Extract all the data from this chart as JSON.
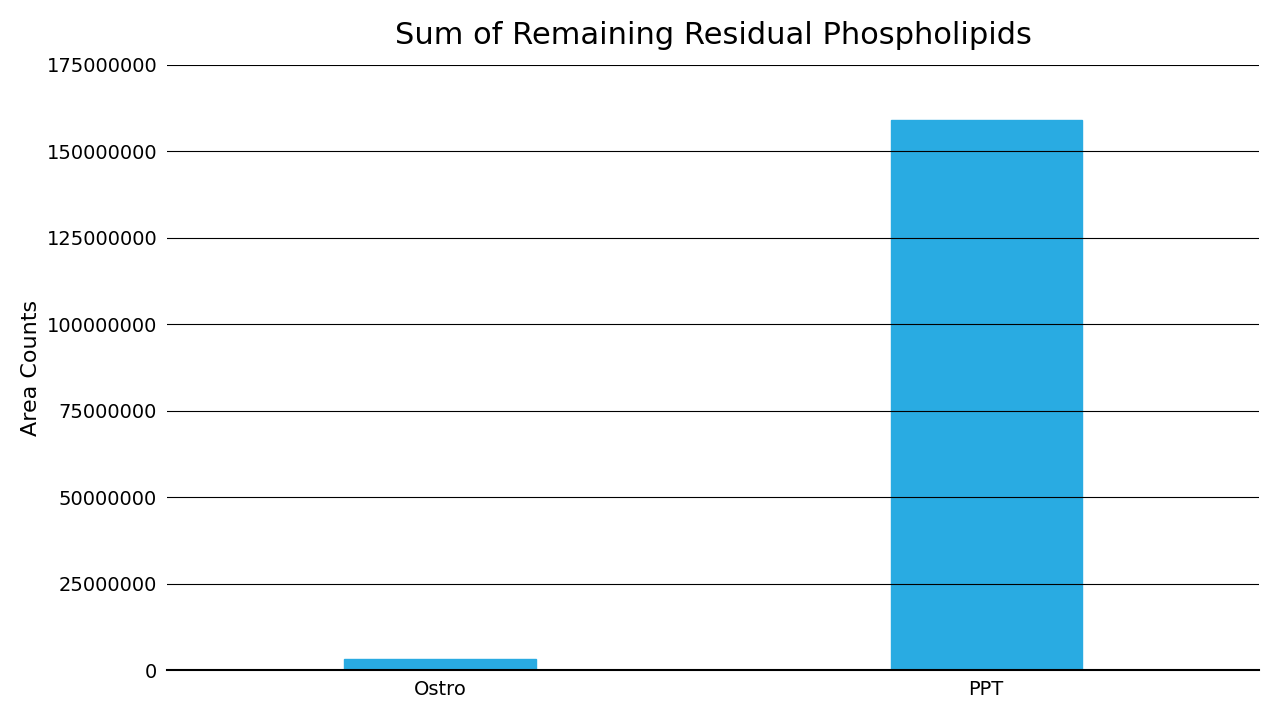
{
  "categories": [
    "Ostro",
    "PPT"
  ],
  "values": [
    3200000,
    159000000
  ],
  "bar_color": "#29ABE2",
  "title": "Sum of Remaining Residual Phospholipids",
  "ylabel": "Area Counts",
  "ylim": [
    0,
    175000000
  ],
  "yticks": [
    0,
    25000000,
    50000000,
    75000000,
    100000000,
    125000000,
    150000000,
    175000000
  ],
  "title_fontsize": 22,
  "label_fontsize": 16,
  "tick_fontsize": 14,
  "background_color": "#ffffff",
  "bar_width": 0.35
}
